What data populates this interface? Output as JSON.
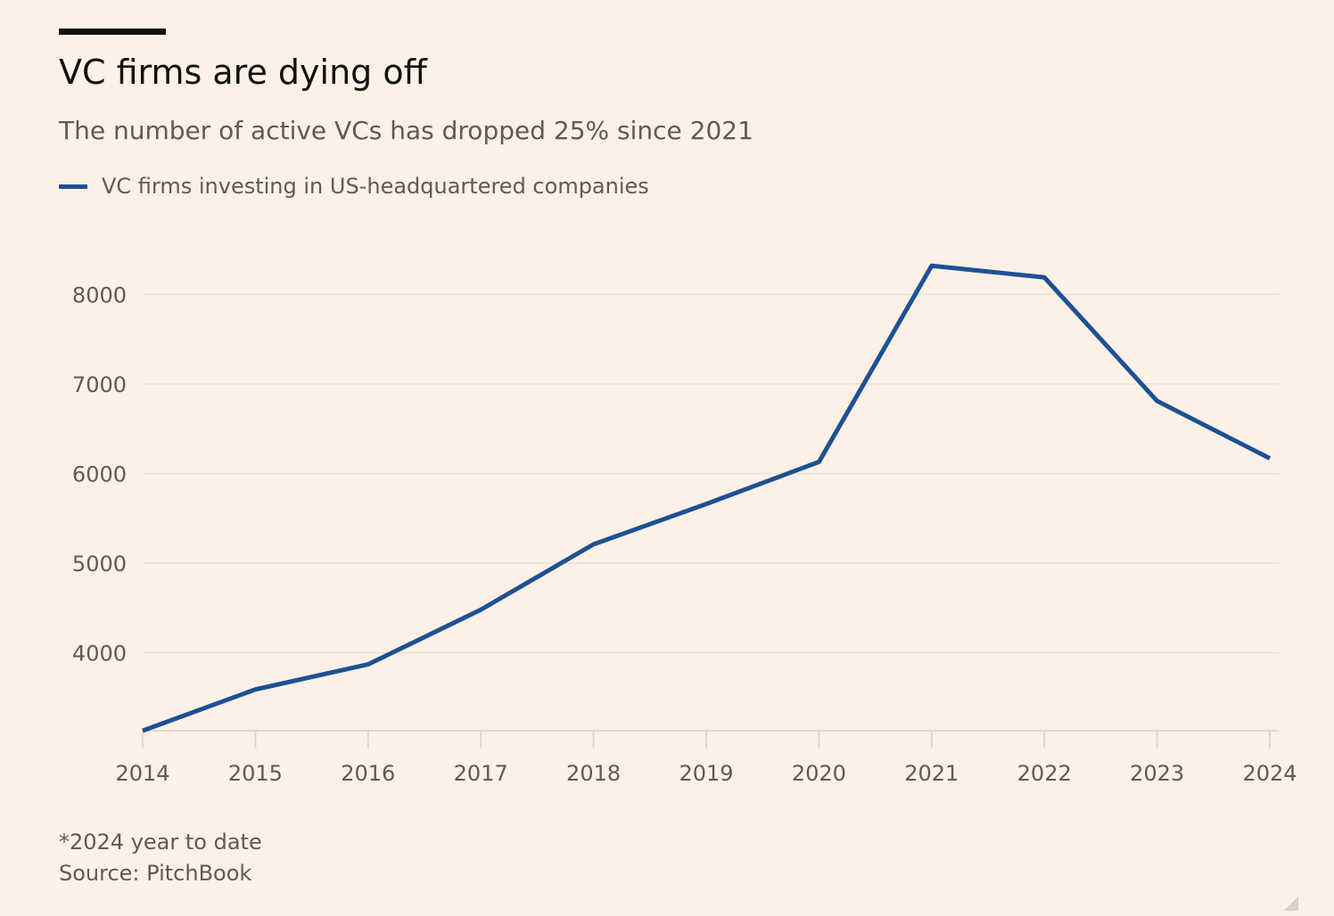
{
  "chart_data": {
    "type": "line",
    "title": "VC firms are dying off",
    "subtitle": "The number of active VCs has dropped 25% since 2021",
    "x": [
      "2014",
      "2015",
      "2016",
      "2017",
      "2018",
      "2019",
      "2020",
      "2021",
      "2022",
      "2023",
      "2024"
    ],
    "series": [
      {
        "name": "VC firms investing in US-headquartered companies",
        "values": [
          3130,
          3590,
          3870,
          4480,
          5210,
          5660,
          6130,
          8320,
          8190,
          6810,
          6170
        ],
        "color": "#1d5193"
      }
    ],
    "yticks": [
      4000,
      5000,
      6000,
      7000,
      8000
    ],
    "ylim": [
      3130,
      8700
    ],
    "xlabel": "",
    "ylabel": "",
    "grid": true,
    "legend_position": "top-left",
    "footnote": "*2024 year to date",
    "source": "Source: PitchBook"
  }
}
